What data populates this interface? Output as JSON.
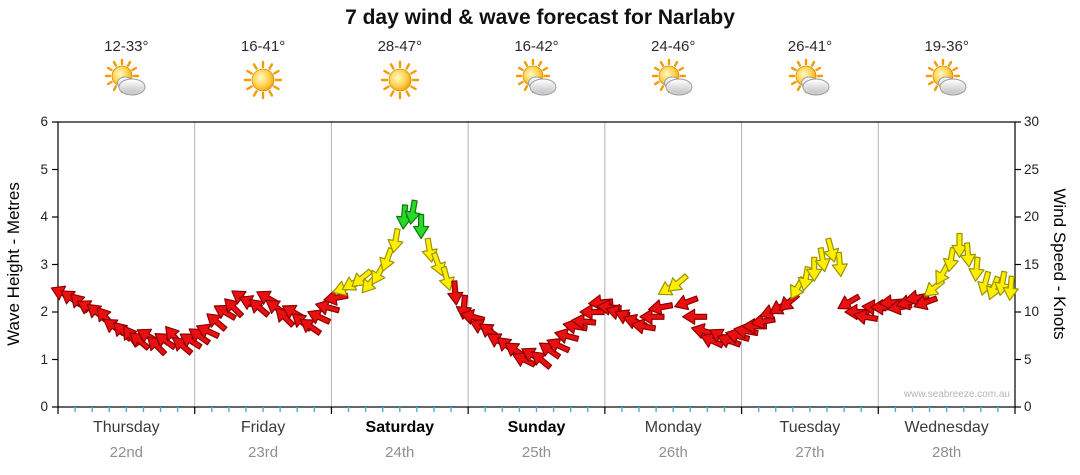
{
  "title": "7 day wind & wave forecast for Narlaby",
  "watermark": "www.seabreeze.com.au",
  "axes": {
    "left_label": "Wave Height - Metres",
    "right_label": "Wind Speed - Knots",
    "left_ticks": [
      0,
      1,
      2,
      3,
      4,
      5,
      6
    ],
    "right_ticks": [
      0,
      5,
      10,
      15,
      20,
      25,
      30
    ],
    "left_range": [
      0,
      6
    ],
    "right_range": [
      0,
      30
    ]
  },
  "days": [
    {
      "name": "Thursday",
      "date": "22nd",
      "temp": "12-33°",
      "icon": "sun-cloud",
      "weekend": false
    },
    {
      "name": "Friday",
      "date": "23rd",
      "temp": "16-41°",
      "icon": "sun",
      "weekend": false
    },
    {
      "name": "Saturday",
      "date": "24th",
      "temp": "28-47°",
      "icon": "sun",
      "weekend": true
    },
    {
      "name": "Sunday",
      "date": "25th",
      "temp": "16-42°",
      "icon": "sun-cloud",
      "weekend": true
    },
    {
      "name": "Monday",
      "date": "26th",
      "temp": "24-46°",
      "icon": "sun-cloud",
      "weekend": false
    },
    {
      "name": "Tuesday",
      "date": "27th",
      "temp": "26-41°",
      "icon": "sun-cloud",
      "weekend": false
    },
    {
      "name": "Wednesday",
      "date": "28th",
      "temp": "19-36°",
      "icon": "sun-cloud",
      "weekend": false
    }
  ],
  "chart_data": {
    "type": "wind-arrows",
    "title": "7 day wind & wave forecast for Narlaby",
    "x_unit": "days",
    "x_range": [
      0,
      7
    ],
    "x_categories": [
      "Thursday 22nd",
      "Friday 23rd",
      "Saturday 24th",
      "Sunday 25th",
      "Monday 26th",
      "Tuesday 27th",
      "Wednesday 28th"
    ],
    "y_axis": "wind speed (knots), plotted against right axis; left axis wave height 0-6 m shares the frame",
    "y_range": [
      0,
      30
    ],
    "points_per_day": 16,
    "color_rules": {
      "red_below": 12.3,
      "green_from": 19
    },
    "colors": {
      "red": "#e81010",
      "yellow": "#ffee00",
      "green": "#29d829"
    },
    "strokes": {
      "red": "#8f0000",
      "yellow": "#9a9200",
      "green": "#0c7a0c"
    },
    "grid": {
      "vertical_day_lines": true,
      "horizontal_lines": false
    },
    "days": [
      {
        "label": "Thursday 22nd",
        "knots": [
          12,
          11.5,
          11,
          10.5,
          10,
          9.5,
          8.5,
          8,
          7.5,
          7,
          7.5,
          6.5,
          7,
          7.5,
          6.5,
          7
        ],
        "dir": [
          205,
          215,
          225,
          210,
          220,
          230,
          215,
          225,
          235,
          220,
          210,
          225,
          215,
          230,
          220,
          212
        ]
      },
      {
        "label": "Friday 23rd",
        "knots": [
          7.5,
          8,
          9,
          10,
          10.5,
          11.5,
          11,
          10.5,
          11.5,
          10.5,
          9.5,
          10,
          9,
          8.5,
          9.5,
          10.5
        ],
        "dir": [
          215,
          205,
          220,
          210,
          225,
          215,
          205,
          220,
          210,
          215,
          225,
          210,
          220,
          215,
          205,
          195
        ]
      },
      {
        "label": "Saturday 24th",
        "knots": [
          11.5,
          12.5,
          13,
          13.5,
          13,
          14,
          15.5,
          17.5,
          20,
          20.5,
          19,
          16.5,
          15,
          13.5,
          12,
          10.5
        ],
        "dir": [
          170,
          160,
          150,
          140,
          130,
          120,
          110,
          100,
          95,
          100,
          90,
          80,
          70,
          75,
          85,
          95
        ]
      },
      {
        "label": "Sunday 25th",
        "knots": [
          9.5,
          8.5,
          8,
          7,
          6.5,
          6,
          5,
          5.5,
          5,
          6,
          6.5,
          7.5,
          8.5,
          9,
          10,
          11
        ],
        "dir": [
          195,
          205,
          215,
          210,
          220,
          215,
          205,
          210,
          220,
          215,
          205,
          195,
          190,
          185,
          180,
          175
        ]
      },
      {
        "label": "Monday 26th",
        "knots": [
          10.5,
          10,
          9.5,
          9,
          8.5,
          9.5,
          10.5,
          12.5,
          13,
          11,
          9.5,
          8,
          7,
          7.5,
          7,
          7.5
        ],
        "dir": [
          185,
          195,
          205,
          200,
          190,
          180,
          170,
          150,
          140,
          160,
          180,
          195,
          205,
          210,
          200,
          195
        ]
      },
      {
        "label": "Tuesday 27th",
        "knots": [
          8,
          8.5,
          9,
          10,
          10.5,
          11,
          12.5,
          13.5,
          14.5,
          15.5,
          16.5,
          15,
          11,
          10,
          9.5,
          10.5
        ],
        "dir": [
          190,
          180,
          170,
          160,
          150,
          140,
          120,
          100,
          90,
          80,
          75,
          85,
          150,
          180,
          190,
          185
        ]
      },
      {
        "label": "Wednesday 28th",
        "knots": [
          10.5,
          11,
          10.5,
          11,
          11.5,
          11,
          12.5,
          14,
          15.5,
          17,
          16,
          14.5,
          13,
          12.5,
          13,
          12.5
        ],
        "dir": [
          180,
          175,
          170,
          165,
          170,
          160,
          140,
          120,
          100,
          90,
          85,
          95,
          105,
          110,
          100,
          95
        ]
      }
    ]
  }
}
